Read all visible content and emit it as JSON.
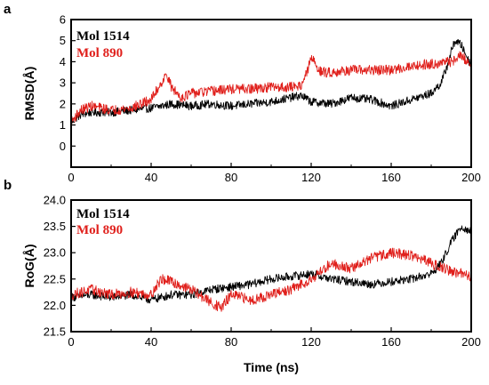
{
  "colors": {
    "series_black": "#000000",
    "series_red": "#e0201c"
  },
  "chart_data": [
    {
      "type": "line",
      "panel_label": "a",
      "ylabel": "RMSD(Å)",
      "xlabel": "",
      "xlim": [
        0,
        200
      ],
      "ylim": [
        -1,
        6
      ],
      "xticks": [
        "0",
        "40",
        "80",
        "120",
        "160",
        "200"
      ],
      "yticks": [
        "0",
        "1",
        "2",
        "3",
        "4",
        "5",
        "6"
      ],
      "legend_position": "top-left",
      "series": [
        {
          "name": "Mol 1514",
          "color": "#000000",
          "noise": 0.2,
          "x": [
            0,
            2,
            5,
            10,
            20,
            30,
            40,
            50,
            60,
            70,
            80,
            90,
            100,
            110,
            115,
            120,
            130,
            140,
            150,
            160,
            170,
            180,
            185,
            188,
            190,
            192,
            195,
            198,
            200
          ],
          "y": [
            1.1,
            1.3,
            1.5,
            1.6,
            1.6,
            1.7,
            1.8,
            2.0,
            1.9,
            2.0,
            1.9,
            2.0,
            2.1,
            2.3,
            2.4,
            2.1,
            2.0,
            2.3,
            2.2,
            1.9,
            2.2,
            2.5,
            3.0,
            3.8,
            4.5,
            5.0,
            4.8,
            4.2,
            3.8
          ]
        },
        {
          "name": "Mol 890",
          "color": "#e0201c",
          "noise": 0.24,
          "x": [
            0,
            2,
            5,
            10,
            20,
            30,
            40,
            45,
            48,
            50,
            55,
            60,
            70,
            80,
            90,
            100,
            110,
            115,
            118,
            120,
            125,
            130,
            140,
            150,
            160,
            170,
            180,
            190,
            195,
            200
          ],
          "y": [
            1.1,
            1.4,
            1.7,
            1.9,
            1.7,
            1.8,
            2.2,
            3.0,
            3.4,
            2.8,
            2.3,
            2.5,
            2.6,
            2.7,
            2.7,
            2.8,
            2.8,
            2.9,
            3.5,
            4.2,
            3.5,
            3.5,
            3.6,
            3.6,
            3.6,
            3.8,
            3.9,
            4.0,
            4.3,
            3.8
          ]
        }
      ]
    },
    {
      "type": "line",
      "panel_label": "b",
      "ylabel": "RoG(Å)",
      "xlabel": "Time (ns)",
      "xlim": [
        0,
        200
      ],
      "ylim": [
        21.5,
        24.0
      ],
      "xticks": [
        "0",
        "40",
        "80",
        "120",
        "160",
        "200"
      ],
      "yticks": [
        "21.5",
        "22.0",
        "22.5",
        "23.0",
        "23.5",
        "24.0"
      ],
      "legend_position": "top-left",
      "series": [
        {
          "name": "Mol 1514",
          "color": "#000000",
          "noise": 0.08,
          "x": [
            0,
            10,
            20,
            30,
            40,
            50,
            60,
            70,
            80,
            90,
            100,
            110,
            120,
            130,
            140,
            150,
            160,
            170,
            180,
            185,
            190,
            195,
            200
          ],
          "y": [
            22.15,
            22.2,
            22.15,
            22.2,
            22.1,
            22.2,
            22.2,
            22.3,
            22.35,
            22.4,
            22.5,
            22.55,
            22.6,
            22.5,
            22.45,
            22.4,
            22.45,
            22.5,
            22.6,
            22.8,
            23.2,
            23.5,
            23.4
          ]
        },
        {
          "name": "Mol 890",
          "color": "#e0201c",
          "noise": 0.1,
          "x": [
            0,
            10,
            20,
            30,
            40,
            45,
            50,
            60,
            70,
            75,
            80,
            90,
            100,
            110,
            120,
            130,
            140,
            150,
            160,
            170,
            180,
            190,
            195,
            200
          ],
          "y": [
            22.2,
            22.3,
            22.2,
            22.25,
            22.2,
            22.5,
            22.45,
            22.3,
            22.05,
            21.95,
            22.2,
            22.1,
            22.2,
            22.3,
            22.5,
            22.8,
            22.7,
            22.9,
            23.0,
            22.95,
            22.8,
            22.65,
            22.6,
            22.55
          ]
        }
      ]
    }
  ]
}
